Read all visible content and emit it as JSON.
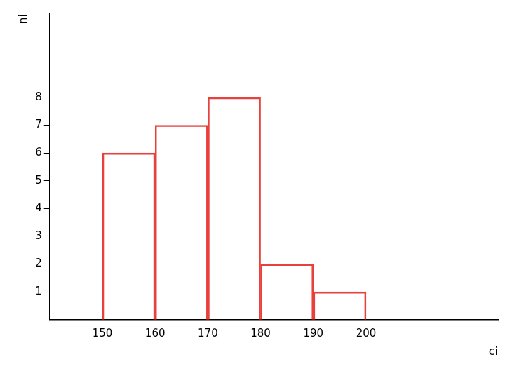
{
  "chart_data": {
    "type": "histogram",
    "bins": [
      150,
      160,
      170,
      180,
      190,
      200
    ],
    "values": [
      6,
      7,
      8,
      2,
      1
    ],
    "color": "#e8413c",
    "xlabel": "ci",
    "ylabel": "ni",
    "xlim": [
      140,
      225
    ],
    "ylim": [
      0,
      11
    ],
    "xticks": [
      150,
      160,
      170,
      180,
      190,
      200
    ],
    "yticks": [
      1,
      2,
      3,
      4,
      5,
      6,
      7,
      8
    ],
    "grid": false
  }
}
